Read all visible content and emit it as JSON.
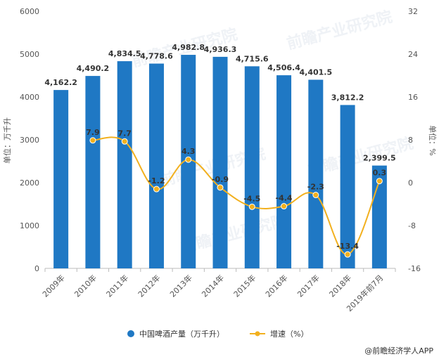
{
  "chart_data": {
    "type": "bar",
    "categories": [
      "2009年",
      "2010年",
      "2011年",
      "2012年",
      "2013年",
      "2014年",
      "2015年",
      "2016年",
      "2017年",
      "2018年",
      "2019年前7月"
    ],
    "series": [
      {
        "name": "中国啤酒产量（万千升）",
        "type": "bar",
        "axis": "left",
        "color": "#1f78c4",
        "values": [
          4162.2,
          4490.2,
          4834.5,
          4778.6,
          4982.8,
          4936.3,
          4715.6,
          4506.4,
          4401.5,
          3812.2,
          2399.5
        ],
        "labels": [
          "4,162.2",
          "4,490.2",
          "4,834.5",
          "4,778.6",
          "4,982.8",
          "4,936.3",
          "4,715.6",
          "4,506.4",
          "4,401.5",
          "3,812.2",
          "2,399.5"
        ]
      },
      {
        "name": "增速（%）",
        "type": "line",
        "axis": "right",
        "color": "#f2b01e",
        "values": [
          null,
          7.9,
          7.7,
          -1.2,
          4.3,
          -0.9,
          -4.5,
          -4.4,
          -2.3,
          -13.4,
          0.3
        ],
        "labels": [
          "",
          "7.9",
          "7.7",
          "-1.2",
          "4.3",
          "-0.9",
          "-4.5",
          "-4.4",
          "-2.3",
          "-13.4",
          "0.3"
        ]
      }
    ],
    "y_left": {
      "label": "单位：万千升",
      "ylim": [
        0,
        6000
      ],
      "ticks": [
        "0",
        "1000",
        "2000",
        "3000",
        "4000",
        "5000",
        "6000"
      ]
    },
    "y_right": {
      "label": "单位：%",
      "ylim": [
        -16,
        32
      ],
      "ticks": [
        "-16",
        "-8",
        "0",
        "8",
        "16",
        "24",
        "32"
      ]
    },
    "legend_position": "bottom",
    "grid": false
  },
  "source": "@前瞻经济学人APP",
  "watermark": "前瞻产业研究院"
}
